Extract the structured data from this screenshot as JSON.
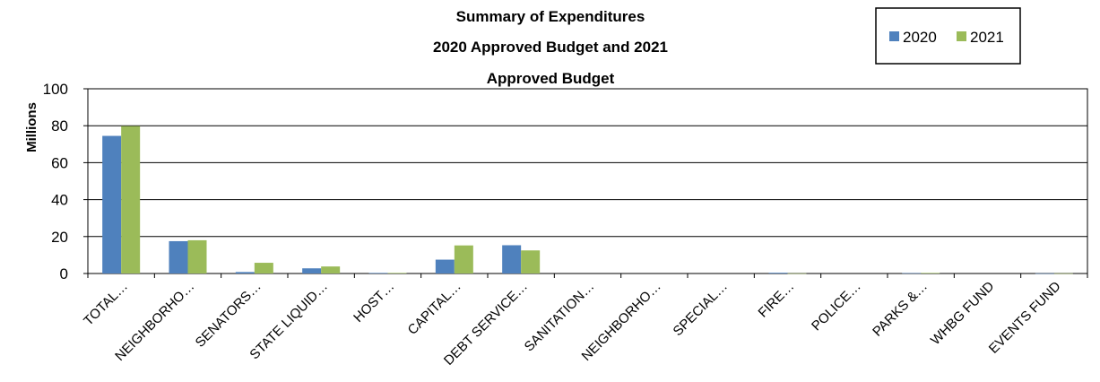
{
  "chart_data": {
    "type": "bar",
    "title_lines": [
      "Summary of Expenditures",
      "2020 Approved Budget and 2021",
      "Approved Budget"
    ],
    "ylabel": "Millions",
    "xlabel": "",
    "ylim": [
      0,
      100
    ],
    "yticks": [
      0,
      20,
      40,
      60,
      80,
      100
    ],
    "grid": true,
    "legend_position": "top-right",
    "categories": [
      "TOTAL…",
      "NEIGHBORHO…",
      "SENATORS…",
      "STATE LIQUID…",
      "HOST…",
      "CAPITAL…",
      "DEBT SERVICE…",
      "SANITATION…",
      "NEIGHBORHO…",
      "SPECIAL…",
      "FIRE…",
      "POLICE…",
      "PARKS &…",
      "WHBG FUND",
      "EVENTS FUND"
    ],
    "series": [
      {
        "name": "2020",
        "color": "#4F81BD",
        "values": [
          74.5,
          17.5,
          0.8,
          2.8,
          0.3,
          7.5,
          15.3,
          0,
          0,
          0,
          0.4,
          0,
          0.2,
          0,
          0.1
        ]
      },
      {
        "name": "2021",
        "color": "#9BBB59",
        "values": [
          79.8,
          18.0,
          5.8,
          3.8,
          0.3,
          15.2,
          12.5,
          0,
          0,
          0,
          0.1,
          0,
          0.3,
          0,
          0.1
        ]
      }
    ]
  }
}
